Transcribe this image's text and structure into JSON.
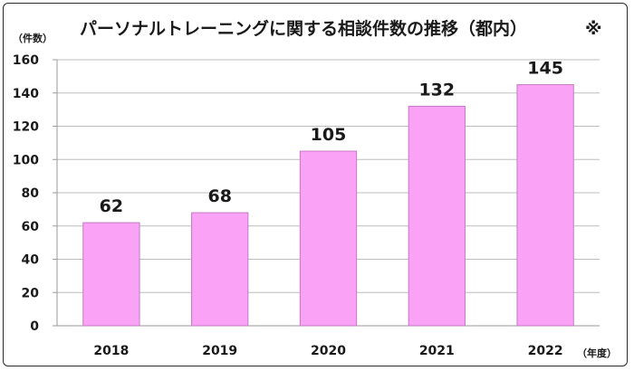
{
  "chart_data": {
    "type": "bar",
    "title": "パーソナルトレーニングに関する相談件数の推移（都内）",
    "title_mark": "※",
    "ylabel": "（件数）",
    "xlabel": "（年度）",
    "categories": [
      "2018",
      "2019",
      "2020",
      "2021",
      "2022"
    ],
    "values": [
      62,
      68,
      105,
      132,
      145
    ],
    "ylim": [
      0,
      160
    ],
    "yticks": [
      0,
      20,
      40,
      60,
      80,
      100,
      120,
      140,
      160
    ],
    "grid": true,
    "bar_color": "#f9a2f6",
    "bar_edge_color": "#c47ac2",
    "grid_color": "#bdbdbd"
  }
}
